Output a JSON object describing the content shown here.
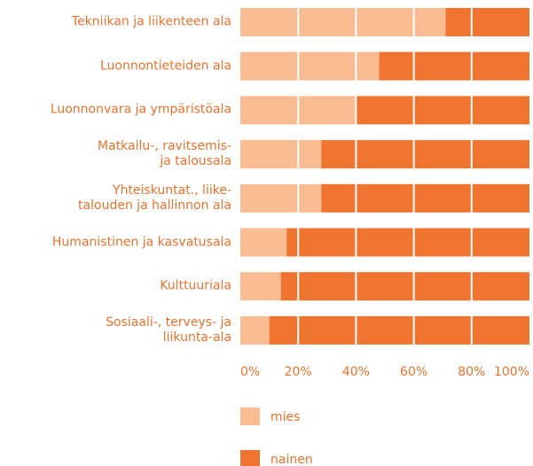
{
  "chart_data": {
    "type": "stacked_barh",
    "categories": [
      "Tekniikan ja liikenteen ala",
      "Luonnontieteiden ala",
      "Luonnonvara ja ympäristöala",
      "Matkailu-, ravitsemis-\nja talousala",
      "Yhteiskuntat., liike-\ntalouden ja hallinnon ala",
      "Humanistinen ja kasvatusala",
      "Kulttuuriala",
      "Sosiaali-, terveys- ja\nliikunta-ala"
    ],
    "series": [
      {
        "name": "mies",
        "color": "#f9bc92",
        "values": [
          71,
          48,
          40,
          28,
          28,
          16,
          14,
          10
        ]
      },
      {
        "name": "nainen",
        "color": "#ee7430",
        "values": [
          29,
          52,
          60,
          72,
          72,
          84,
          86,
          90
        ]
      }
    ],
    "xlim": [
      0,
      100
    ],
    "xticks": [
      {
        "value": 0,
        "label": "0%"
      },
      {
        "value": 20,
        "label": "20%"
      },
      {
        "value": 40,
        "label": "40%"
      },
      {
        "value": 60,
        "label": "60%"
      },
      {
        "value": 80,
        "label": "80%"
      },
      {
        "value": 100,
        "label": "100%"
      }
    ],
    "grid": true
  }
}
